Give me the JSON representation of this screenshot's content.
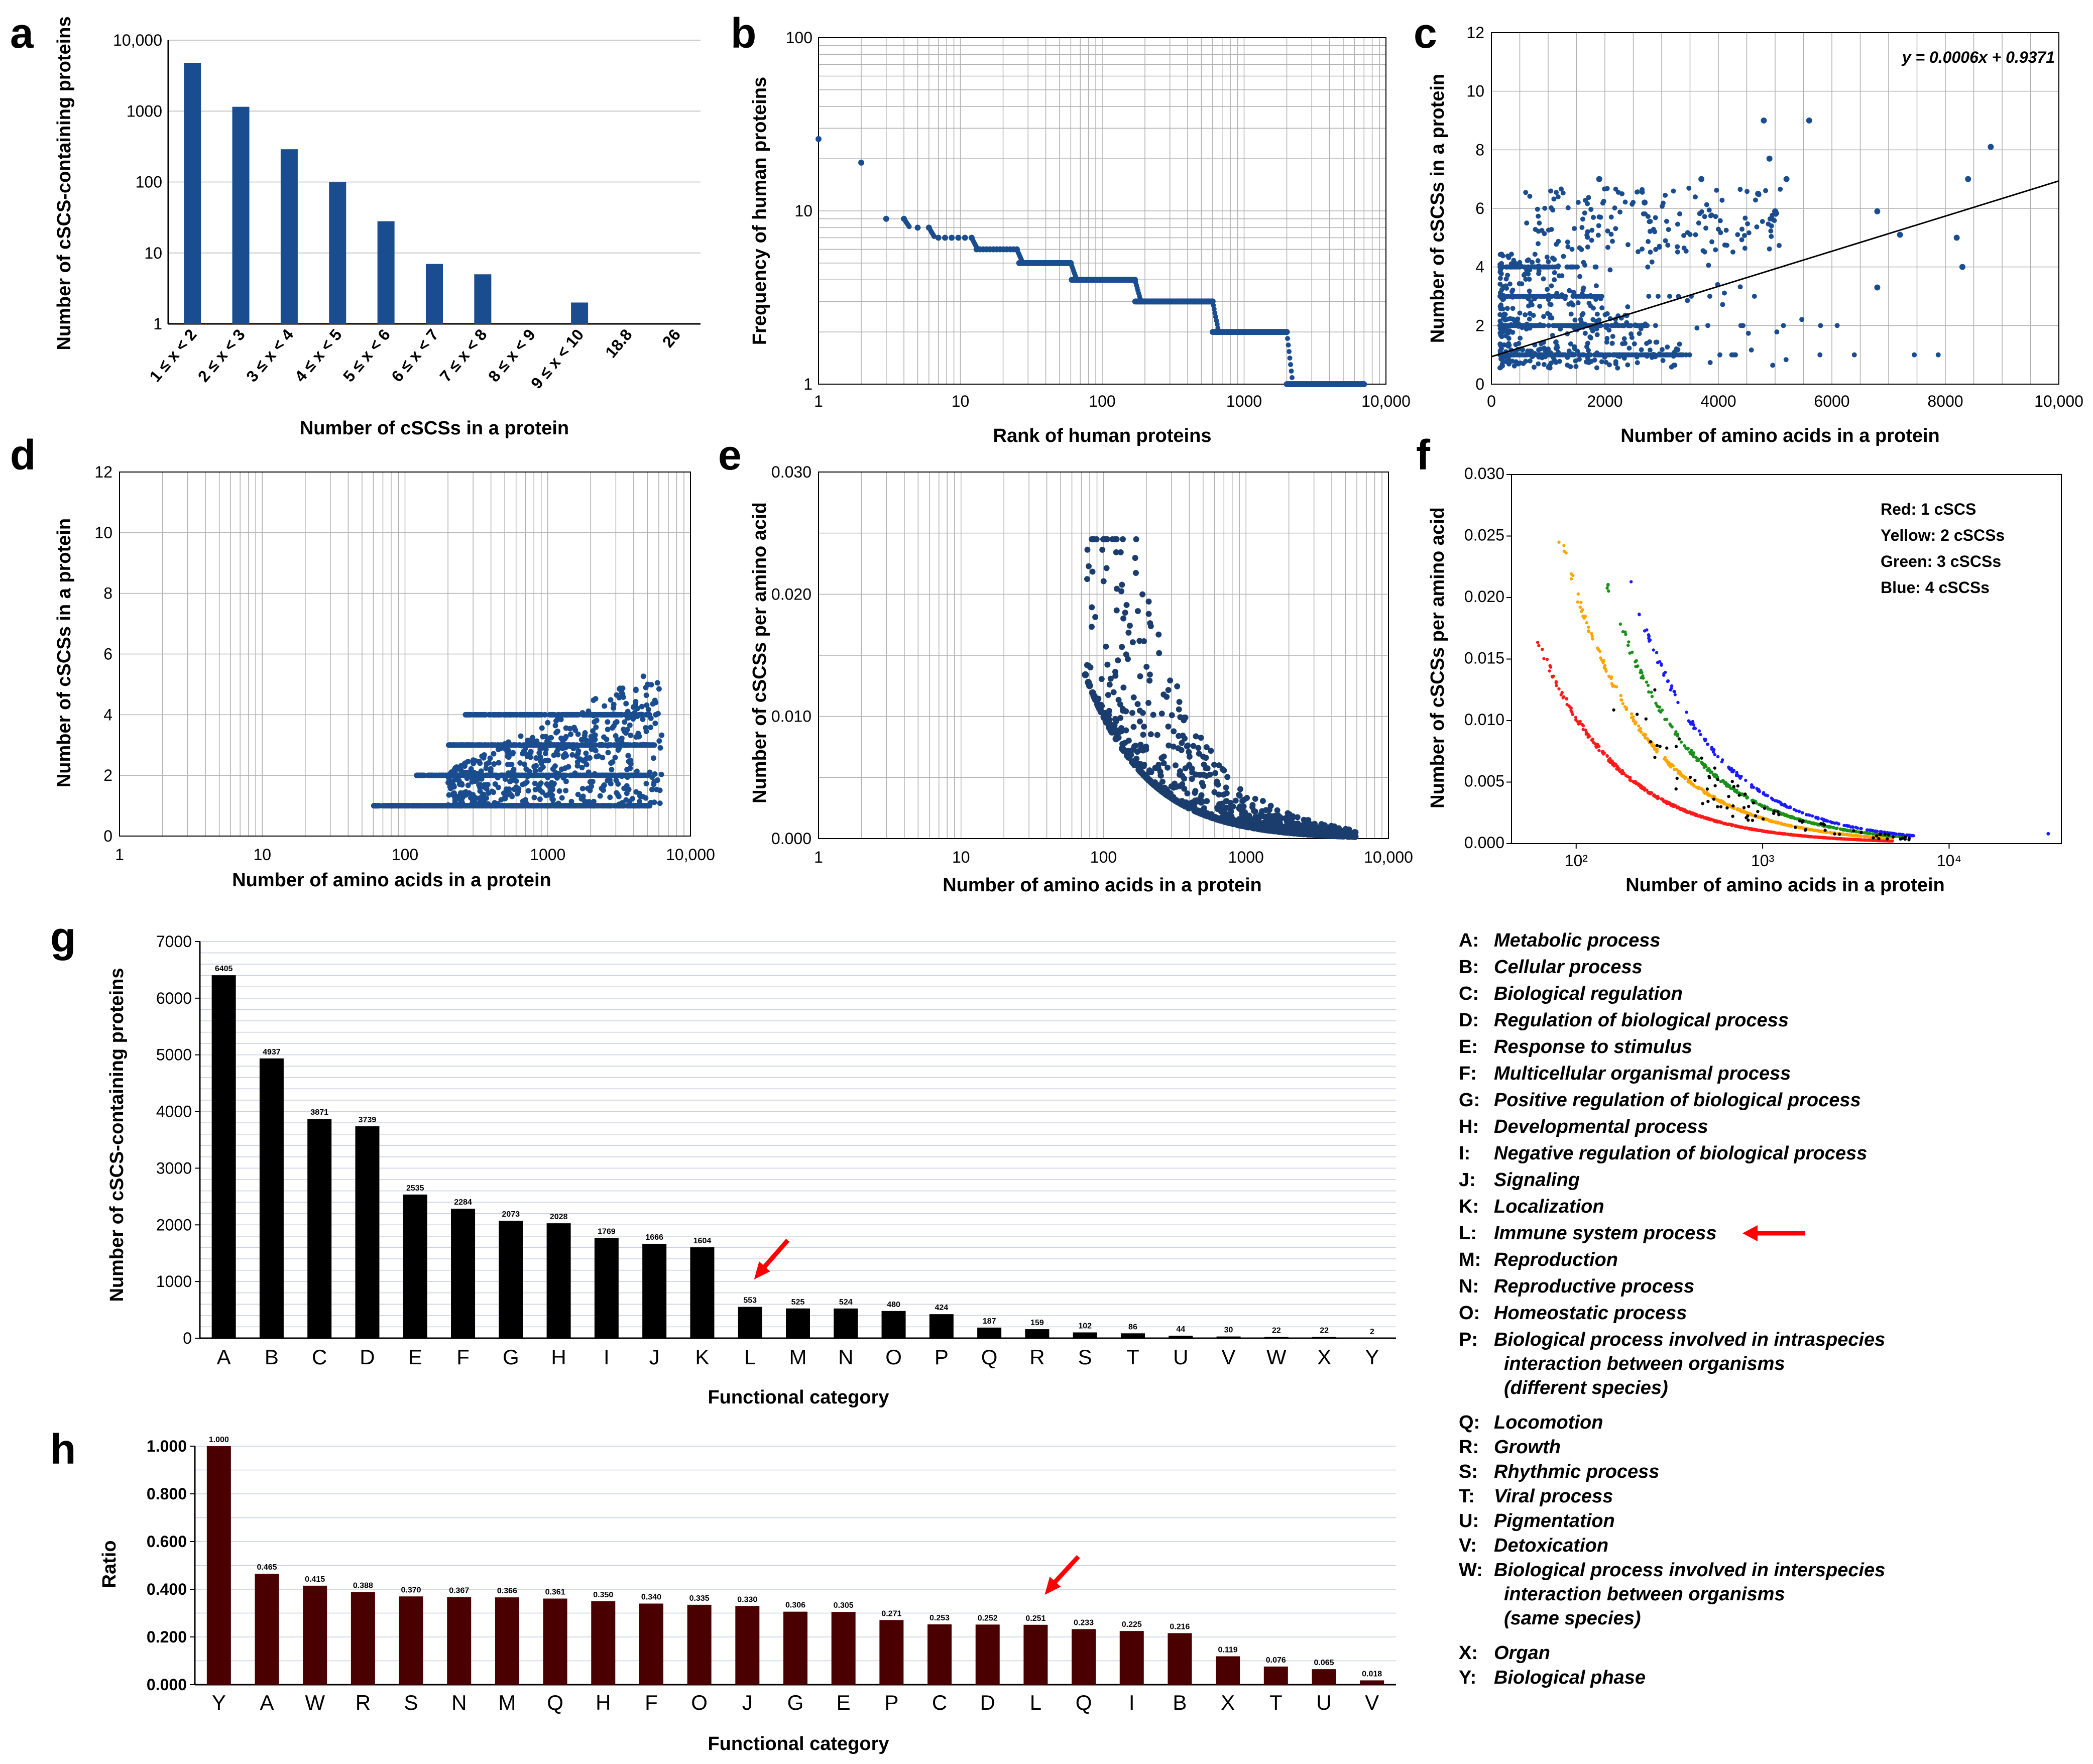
{
  "panel_labels": {
    "a": "a",
    "b": "b",
    "c": "c",
    "d": "d",
    "e": "e",
    "f": "f",
    "g": "g",
    "h": "h"
  },
  "chart_data": [
    {
      "id": "a",
      "type": "bar",
      "xlabel": "Number of cSCSs in a protein",
      "ylabel": "Number of cSCS-containing proteins",
      "yscale": "log",
      "ylim": [
        1,
        10000
      ],
      "yticks": [
        "1",
        "10",
        "100",
        "1000",
        "10,000"
      ],
      "categories": [
        "1 ≤ x < 2",
        "2 ≤ x < 3",
        "3 ≤ x < 4",
        "4 ≤ x < 5",
        "5 ≤ x < 6",
        "6 ≤ x < 7",
        "7 ≤ x < 8",
        "8 ≤ x < 9",
        "9 ≤ x < 10",
        "18.8",
        "26"
      ],
      "values": [
        4800,
        1150,
        290,
        100,
        28,
        7,
        5,
        0,
        2,
        0,
        0
      ],
      "color": "#1a4d8f"
    },
    {
      "id": "b",
      "type": "scatter",
      "xlabel": "Rank of human proteins",
      "ylabel": "Frequency of human proteins",
      "xscale": "log",
      "yscale": "log",
      "xlim": [
        1,
        10000
      ],
      "ylim": [
        1,
        100
      ],
      "xticks": [
        "1",
        "10",
        "100",
        "1000",
        "10,000"
      ],
      "yticks": [
        "1",
        "10",
        "100"
      ],
      "steps": [
        {
          "value": 26,
          "from": 1,
          "to": 1
        },
        {
          "value": 19,
          "from": 2,
          "to": 2
        },
        {
          "value": 9,
          "from": 3,
          "to": 4
        },
        {
          "value": 8,
          "from": 5,
          "to": 6
        },
        {
          "value": 7,
          "from": 7,
          "to": 12
        },
        {
          "value": 6,
          "from": 13,
          "to": 25
        },
        {
          "value": 5,
          "from": 26,
          "to": 60
        },
        {
          "value": 4,
          "from": 61,
          "to": 170
        },
        {
          "value": 3,
          "from": 171,
          "to": 600
        },
        {
          "value": 2,
          "from": 601,
          "to": 2000
        },
        {
          "value": 1,
          "from": 2001,
          "to": 7000
        }
      ],
      "color": "#1a4d8f"
    },
    {
      "id": "c",
      "type": "scatter",
      "xlabel": "Number of amino acids in a protein",
      "ylabel": "Number of cSCSs in a protein",
      "xlim": [
        0,
        10000
      ],
      "ylim": [
        0,
        12
      ],
      "xticks": [
        "0",
        "2000",
        "4000",
        "6000",
        "8000",
        "10,000"
      ],
      "yticks": [
        "0",
        "2",
        "4",
        "6",
        "8",
        "10",
        "12"
      ],
      "equation": "y = 0.0006x + 0.9371",
      "fit": {
        "slope": 0.0006,
        "intercept": 0.9371
      },
      "outliers": [
        [
          4800,
          9
        ],
        [
          5600,
          9
        ],
        [
          8800,
          8.1
        ],
        [
          4900,
          7.7
        ],
        [
          1900,
          7
        ],
        [
          5200,
          7
        ],
        [
          8400,
          7
        ],
        [
          3700,
          7
        ],
        [
          2700,
          6.2
        ],
        [
          6800,
          5.9
        ],
        [
          4700,
          6.5
        ],
        [
          7200,
          5.1
        ],
        [
          8200,
          5
        ],
        [
          6800,
          3.3
        ],
        [
          8300,
          4
        ],
        [
          5000,
          5.9
        ]
      ],
      "color": "#1a4d8f"
    },
    {
      "id": "d",
      "type": "scatter",
      "xlabel": "Number of amino acids in a protein",
      "ylabel": "Number of cSCSs in a protein",
      "xscale": "log",
      "xlim": [
        1,
        10000
      ],
      "ylim": [
        0,
        12
      ],
      "xticks": [
        "1",
        "10",
        "100",
        "1000",
        "10,000"
      ],
      "yticks": [
        "0",
        "2",
        "4",
        "6",
        "8",
        "10",
        "12"
      ],
      "color": "#1a4d8f"
    },
    {
      "id": "e",
      "type": "scatter",
      "xlabel": "Number of amino acids in a protein",
      "ylabel": "Number of cSCSs per amino acid",
      "xscale": "log",
      "xlim": [
        1,
        10000
      ],
      "ylim": [
        0,
        0.03
      ],
      "xticks": [
        "1",
        "10",
        "100",
        "1000",
        "10,000"
      ],
      "yticks": [
        "0.000",
        "0.010",
        "0.020",
        "0.030"
      ],
      "color": "#1a3d6e"
    },
    {
      "id": "f",
      "type": "scatter",
      "xlabel": "Number of amino acids in a protein",
      "ylabel": "Number of cSCSs per amino acid",
      "xscale": "log",
      "xlim": [
        45,
        40000
      ],
      "ylim": [
        0,
        0.03
      ],
      "xticks": [
        "10²",
        "10³",
        "10⁴"
      ],
      "yticks": [
        "0.000",
        "0.005",
        "0.010",
        "0.015",
        "0.020",
        "0.025",
        "0.030"
      ],
      "legend": [
        {
          "label": "Red: 1 cSCS",
          "color": "#ff1a1a"
        },
        {
          "label": "Yellow: 2 cSCSs",
          "color": "#ffa500"
        },
        {
          "label": "Green: 3 cSCSs",
          "color": "#1a8f1a"
        },
        {
          "label": "Blue: 4 cSCSs",
          "color": "#1a1aff"
        }
      ]
    },
    {
      "id": "g",
      "type": "bar",
      "xlabel": "Functional category",
      "ylabel": "Number of cSCS-containing proteins",
      "ylim": [
        0,
        7000
      ],
      "yticks": [
        "0",
        "1000",
        "2000",
        "3000",
        "4000",
        "5000",
        "6000",
        "7000"
      ],
      "categories": [
        "A",
        "B",
        "C",
        "D",
        "E",
        "F",
        "G",
        "H",
        "I",
        "J",
        "K",
        "L",
        "M",
        "N",
        "O",
        "P",
        "Q",
        "R",
        "S",
        "T",
        "U",
        "V",
        "W",
        "X",
        "Y"
      ],
      "values": [
        6405,
        4937,
        3871,
        3739,
        2535,
        2284,
        2073,
        2028,
        1769,
        1666,
        1604,
        553,
        525,
        524,
        480,
        424,
        187,
        159,
        102,
        86,
        44,
        30,
        22,
        22,
        2
      ],
      "labels": [
        "6405",
        "4937",
        "3871",
        "3739",
        "2535",
        "2284",
        "2073",
        "2028",
        "1769",
        "1666",
        "1604",
        "553",
        "525",
        "524",
        "480",
        "424",
        "187",
        "159",
        "102",
        "86",
        "44",
        "30",
        "22",
        "22",
        "2"
      ],
      "highlight": "L",
      "color": "#000000"
    },
    {
      "id": "h",
      "type": "bar",
      "xlabel": "Functional category",
      "ylabel": "Ratio",
      "ylim": [
        0,
        1
      ],
      "yticks": [
        "0.000",
        "0.200",
        "0.400",
        "0.600",
        "0.800",
        "1.000"
      ],
      "categories": [
        "Y",
        "A",
        "W",
        "R",
        "S",
        "N",
        "M",
        "Q",
        "H",
        "F",
        "O",
        "J",
        "G",
        "E",
        "P",
        "C",
        "D",
        "L",
        "Q",
        "I",
        "B",
        "X",
        "T",
        "U",
        "V"
      ],
      "values": [
        1.0,
        0.465,
        0.415,
        0.388,
        0.37,
        0.367,
        0.366,
        0.361,
        0.35,
        0.34,
        0.335,
        0.33,
        0.306,
        0.305,
        0.271,
        0.253,
        0.252,
        0.251,
        0.233,
        0.225,
        0.216,
        0.119,
        0.076,
        0.065,
        0.018
      ],
      "labels": [
        "1.000",
        "0.465",
        "0.415",
        "0.388",
        "0.370",
        "0.367",
        "0.366",
        "0.361",
        "0.350",
        "0.340",
        "0.335",
        "0.330",
        "0.306",
        "0.305",
        "0.271",
        "0.253",
        "0.252",
        "0.251",
        "0.233",
        "0.225",
        "0.216",
        "0.119",
        "0.076",
        "0.065",
        "0.018"
      ],
      "highlight_index": 17,
      "color": "#4a0000"
    }
  ],
  "legend_g": [
    {
      "key": "A:",
      "text": "Metabolic process"
    },
    {
      "key": "B:",
      "text": "Cellular process"
    },
    {
      "key": "C:",
      "text": "Biological regulation"
    },
    {
      "key": "D:",
      "text": "Regulation of biological process"
    },
    {
      "key": "E:",
      "text": "Response to stimulus"
    },
    {
      "key": "F:",
      "text": "Multicellular organismal process"
    },
    {
      "key": "G:",
      "text": "Positive regulation of biological process"
    },
    {
      "key": "H:",
      "text": "Developmental process"
    },
    {
      "key": "I:",
      "text": "Negative regulation of biological process"
    },
    {
      "key": "J:",
      "text": "Signaling"
    },
    {
      "key": "K:",
      "text": "Localization"
    },
    {
      "key": "L:",
      "text": "Immune system process"
    },
    {
      "key": "M:",
      "text": "Reproduction"
    },
    {
      "key": "N:",
      "text": "Reproductive process"
    },
    {
      "key": "O:",
      "text": "Homeostatic process"
    },
    {
      "key": "P:",
      "text": "Biological process involved in intraspecies",
      "cont": [
        "interaction between organisms",
        " (different species)"
      ]
    },
    {
      "key": "Q:",
      "text": "Locomotion"
    },
    {
      "key": "R:",
      "text": "Growth"
    },
    {
      "key": "S:",
      "text": "Rhythmic process"
    },
    {
      "key": "T:",
      "text": "Viral process"
    },
    {
      "key": "U:",
      "text": "Pigmentation"
    },
    {
      "key": "V:",
      "text": "Detoxication"
    },
    {
      "key": "W:",
      "text": "Biological process involved in interspecies",
      "cont": [
        "interaction between organisms",
        " (same species)"
      ]
    },
    {
      "key": "X:",
      "text": "Organ"
    },
    {
      "key": "Y:",
      "text": "Biological phase"
    }
  ],
  "colors": {
    "blue": "#1a4d8f",
    "navy": "#1a3d6e",
    "black_bar": "#000000",
    "maroon_bar": "#4a0000",
    "arrow": "#ff0000"
  }
}
